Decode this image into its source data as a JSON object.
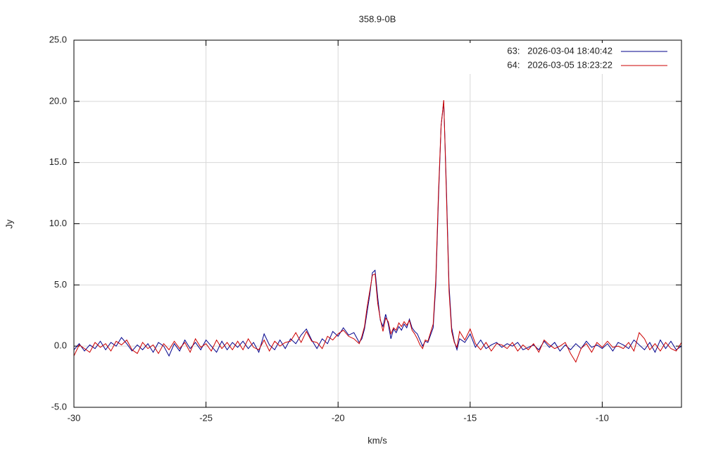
{
  "chart_data": {
    "type": "line",
    "title": "358.9-0B",
    "x_label": "km/s",
    "y_label": "Jy",
    "x": [
      -30,
      -29.8,
      -29.6,
      -29.4,
      -29.2,
      -29,
      -28.8,
      -28.6,
      -28.4,
      -28.2,
      -28,
      -27.8,
      -27.6,
      -27.4,
      -27.2,
      -27,
      -26.8,
      -26.6,
      -26.4,
      -26.2,
      -26,
      -25.8,
      -25.6,
      -25.4,
      -25.2,
      -25,
      -24.8,
      -24.6,
      -24.4,
      -24.2,
      -24,
      -23.8,
      -23.6,
      -23.4,
      -23.2,
      -23,
      -22.8,
      -22.6,
      -22.4,
      -22.2,
      -22,
      -21.8,
      -21.6,
      -21.4,
      -21.2,
      -21,
      -20.8,
      -20.6,
      -20.4,
      -20.2,
      -20,
      -19.8,
      -19.6,
      -19.4,
      -19.2,
      -19.1,
      -19,
      -18.9,
      -18.8,
      -18.7,
      -18.6,
      -18.5,
      -18.4,
      -18.3,
      -18.2,
      -18.1,
      -18,
      -17.9,
      -17.8,
      -17.7,
      -17.6,
      -17.5,
      -17.4,
      -17.3,
      -17.2,
      -17.1,
      -17,
      -16.9,
      -16.8,
      -16.7,
      -16.6,
      -16.5,
      -16.4,
      -16.3,
      -16.2,
      -16.1,
      -16,
      -15.9,
      -15.8,
      -15.7,
      -15.6,
      -15.5,
      -15.4,
      -15.2,
      -15,
      -14.8,
      -14.6,
      -14.4,
      -14.2,
      -14,
      -13.8,
      -13.6,
      -13.4,
      -13.2,
      -13,
      -12.8,
      -12.6,
      -12.4,
      -12.2,
      -12,
      -11.8,
      -11.6,
      -11.4,
      -11.2,
      -11,
      -10.8,
      -10.6,
      -10.4,
      -10.2,
      -10,
      -9.8,
      -9.6,
      -9.4,
      -9.2,
      -9,
      -8.8,
      -8.6,
      -8.4,
      -8.2,
      -8,
      -7.8,
      -7.6,
      -7.4,
      -7.2,
      -7
    ],
    "series": [
      {
        "name": "63:   2026-03-04 18:40:42",
        "color": "#00008b",
        "values": [
          -0.3,
          0.2,
          -0.4,
          0.1,
          -0.2,
          0.4,
          -0.3,
          0.3,
          0.0,
          0.7,
          0.2,
          -0.4,
          0.1,
          -0.3,
          0.2,
          -0.5,
          0.3,
          0.0,
          -0.8,
          0.2,
          -0.4,
          0.5,
          -0.2,
          0.3,
          -0.3,
          0.5,
          0.0,
          -0.5,
          0.4,
          -0.3,
          0.3,
          -0.1,
          0.4,
          -0.2,
          0.3,
          -0.5,
          1.0,
          0.1,
          -0.3,
          0.5,
          -0.2,
          0.6,
          0.2,
          0.9,
          1.4,
          0.5,
          -0.2,
          0.6,
          0.2,
          1.2,
          0.8,
          1.5,
          0.9,
          1.1,
          0.3,
          0.6,
          1.4,
          2.8,
          4.2,
          6.0,
          6.2,
          4.0,
          2.1,
          1.6,
          2.6,
          1.8,
          0.6,
          1.4,
          1.1,
          1.6,
          1.3,
          1.8,
          1.5,
          2.2,
          1.5,
          1.2,
          1.0,
          0.5,
          0.0,
          0.4,
          0.3,
          0.9,
          1.5,
          5.0,
          12.0,
          18.0,
          20.0,
          13.0,
          5.0,
          1.5,
          0.4,
          -0.3,
          0.6,
          0.3,
          1.0,
          -0.1,
          0.5,
          -0.2,
          0.1,
          0.3,
          -0.1,
          0.2,
          0.0,
          0.3,
          -0.3,
          -0.1,
          0.1,
          -0.3,
          0.4,
          -0.1,
          0.3,
          -0.4,
          0.1,
          -0.3,
          0.2,
          -0.2,
          0.4,
          -0.1,
          0.1,
          -0.2,
          0.2,
          -0.4,
          0.3,
          0.1,
          -0.2,
          0.5,
          0.1,
          -0.3,
          0.3,
          -0.5,
          0.5,
          -0.2,
          0.4,
          -0.3,
          0.0
        ]
      },
      {
        "name": "64:   2026-03-05 18:23:22",
        "color": "#cc0000",
        "values": [
          -0.8,
          0.1,
          -0.2,
          -0.5,
          0.3,
          -0.1,
          0.2,
          -0.4,
          0.4,
          0.1,
          0.5,
          -0.3,
          -0.6,
          0.3,
          -0.2,
          0.1,
          -0.6,
          0.2,
          -0.3,
          0.4,
          -0.2,
          0.3,
          -0.5,
          0.6,
          -0.1,
          0.2,
          -0.4,
          0.5,
          -0.2,
          0.3,
          -0.3,
          0.4,
          -0.3,
          0.6,
          -0.1,
          -0.3,
          0.5,
          -0.4,
          0.4,
          0.0,
          0.3,
          0.4,
          1.1,
          0.3,
          1.2,
          0.4,
          0.3,
          -0.2,
          0.8,
          0.5,
          1.0,
          1.3,
          0.8,
          0.6,
          0.2,
          0.8,
          1.6,
          3.2,
          4.5,
          5.8,
          5.9,
          3.5,
          2.2,
          1.2,
          2.3,
          2.0,
          1.0,
          1.5,
          1.3,
          1.9,
          1.6,
          2.0,
          1.7,
          2.1,
          1.3,
          1.0,
          0.6,
          0.1,
          -0.2,
          0.5,
          0.4,
          1.1,
          1.8,
          5.5,
          12.5,
          18.0,
          20.1,
          12.5,
          4.5,
          1.2,
          0.3,
          -0.1,
          1.2,
          0.5,
          1.4,
          0.2,
          -0.3,
          0.3,
          -0.4,
          0.2,
          0.1,
          -0.2,
          0.3,
          -0.4,
          0.1,
          -0.3,
          0.2,
          -0.5,
          0.5,
          0.1,
          -0.2,
          0.0,
          0.3,
          -0.6,
          -1.3,
          -0.2,
          0.2,
          -0.5,
          0.3,
          -0.1,
          0.4,
          -0.1,
          0.0,
          -0.2,
          0.3,
          -0.4,
          1.1,
          0.6,
          -0.3,
          0.2,
          -0.4,
          0.3,
          -0.2,
          -0.4,
          0.3
        ]
      }
    ],
    "xlim": [
      -30,
      -7
    ],
    "ylim": [
      -5,
      25
    ],
    "xticks": [
      -30,
      -25,
      -20,
      -15,
      -10
    ],
    "yticks": [
      {
        "value": -5,
        "label": "-5.0"
      },
      {
        "value": 0,
        "label": "0.0"
      },
      {
        "value": 5,
        "label": "5.0"
      },
      {
        "value": 10,
        "label": "10.0"
      },
      {
        "value": 15,
        "label": "15.0"
      },
      {
        "value": 20,
        "label": "20.0"
      },
      {
        "value": 25,
        "label": "25.0"
      }
    ],
    "grid": true,
    "legend": "top-right"
  }
}
